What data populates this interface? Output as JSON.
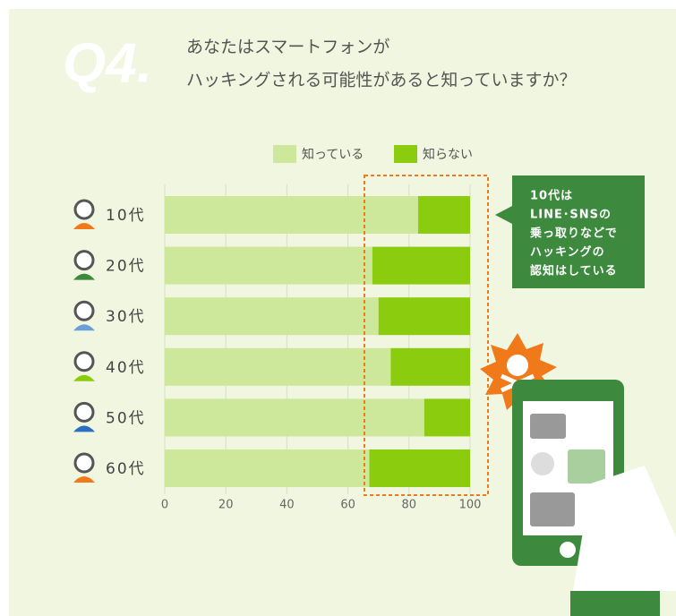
{
  "chart_data": {
    "type": "bar",
    "orientation": "horizontal",
    "stacked": true,
    "question_number": "Q4.",
    "title": [
      "あなたはスマートフォンが",
      "ハッキングされる可能性があると知っていますか？"
    ],
    "categories": [
      "10代",
      "20代",
      "30代",
      "40代",
      "50代",
      "60代"
    ],
    "series": [
      {
        "name": "知っている",
        "color": "#cde89a",
        "values": [
          83,
          68,
          70,
          74,
          85,
          67
        ]
      },
      {
        "name": "知らない",
        "color": "#8ccc0f",
        "values": [
          17,
          32,
          30,
          26,
          15,
          33
        ]
      }
    ],
    "xlim": [
      0,
      100
    ],
    "xticks": [
      0,
      20,
      40,
      60,
      80,
      100
    ],
    "grid": true,
    "annotation": [
      "10代は",
      "LINE･SNSの",
      "乗っ取りなどで",
      "ハッキングの",
      "認知はしている"
    ]
  }
}
